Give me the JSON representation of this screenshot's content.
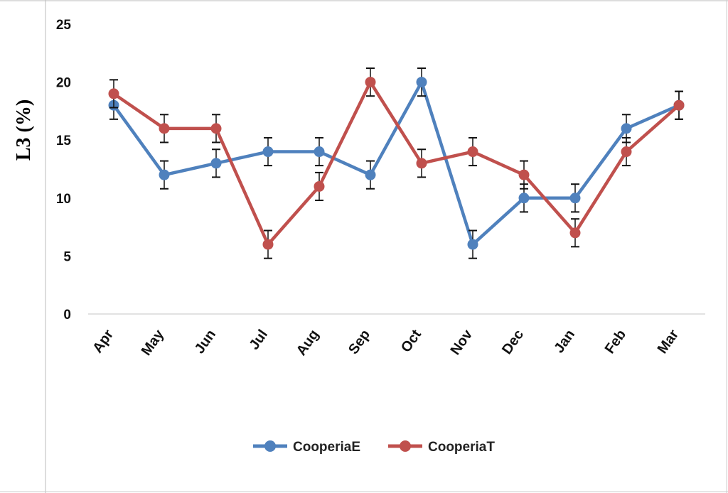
{
  "chart_data": {
    "type": "line",
    "ylabel": "L3 (%)",
    "xlabel": "",
    "ylim": [
      0,
      25
    ],
    "yticks": [
      0,
      5,
      10,
      15,
      20,
      25
    ],
    "categories": [
      "Apr",
      "May",
      "Jun",
      "Jul",
      "Aug",
      "Sep",
      "Oct",
      "Nov",
      "Dec",
      "Jan",
      "Feb",
      "Mar"
    ],
    "grid": false,
    "legend_position": "bottom",
    "series": [
      {
        "name": "CooperiaE",
        "color": "#4F81BD",
        "values": [
          18,
          12,
          13,
          14,
          14,
          12,
          20,
          6,
          10,
          10,
          16,
          18
        ],
        "error": 1.2
      },
      {
        "name": "CooperiaT",
        "color": "#C0504D",
        "values": [
          19,
          16,
          16,
          6,
          11,
          20,
          13,
          14,
          12,
          7,
          14,
          18
        ],
        "error": 1.2
      }
    ]
  }
}
